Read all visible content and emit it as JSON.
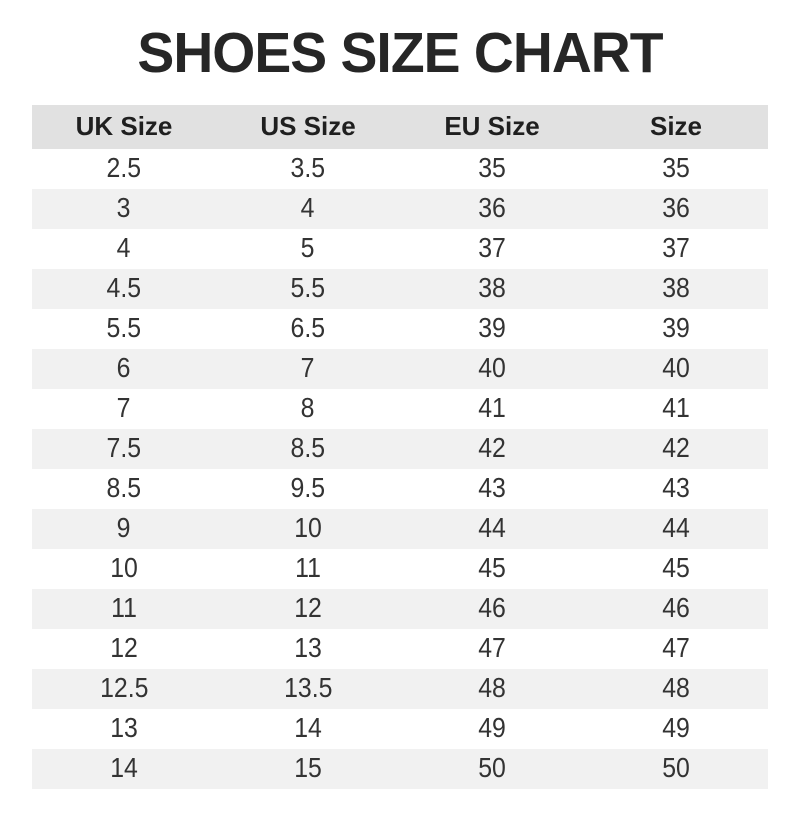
{
  "title": "SHOES SIZE CHART",
  "colors": {
    "background": "#ffffff",
    "header_bg": "#e1e1e1",
    "stripe_bg": "#f1f1f1",
    "title_text": "#262626",
    "header_text": "#1f1f1f",
    "cell_text": "#333333"
  },
  "table": {
    "columns": [
      "UK Size",
      "US Size",
      "EU Size",
      "Size"
    ],
    "rows": [
      [
        "2.5",
        "3.5",
        "35",
        "35"
      ],
      [
        "3",
        "4",
        "36",
        "36"
      ],
      [
        "4",
        "5",
        "37",
        "37"
      ],
      [
        "4.5",
        "5.5",
        "38",
        "38"
      ],
      [
        "5.5",
        "6.5",
        "39",
        "39"
      ],
      [
        "6",
        "7",
        "40",
        "40"
      ],
      [
        "7",
        "8",
        "41",
        "41"
      ],
      [
        "7.5",
        "8.5",
        "42",
        "42"
      ],
      [
        "8.5",
        "9.5",
        "43",
        "43"
      ],
      [
        "9",
        "10",
        "44",
        "44"
      ],
      [
        "10",
        "11",
        "45",
        "45"
      ],
      [
        "11",
        "12",
        "46",
        "46"
      ],
      [
        "12",
        "13",
        "47",
        "47"
      ],
      [
        "12.5",
        "13.5",
        "48",
        "48"
      ],
      [
        "13",
        "14",
        "49",
        "49"
      ],
      [
        "14",
        "15",
        "50",
        "50"
      ]
    ]
  },
  "chart_data": {
    "type": "table",
    "title": "SHOES SIZE CHART",
    "columns": [
      "UK Size",
      "US Size",
      "EU Size",
      "Size"
    ],
    "rows": [
      [
        "2.5",
        "3.5",
        "35",
        "35"
      ],
      [
        "3",
        "4",
        "36",
        "36"
      ],
      [
        "4",
        "5",
        "37",
        "37"
      ],
      [
        "4.5",
        "5.5",
        "38",
        "38"
      ],
      [
        "5.5",
        "6.5",
        "39",
        "39"
      ],
      [
        "6",
        "7",
        "40",
        "40"
      ],
      [
        "7",
        "8",
        "41",
        "41"
      ],
      [
        "7.5",
        "8.5",
        "42",
        "42"
      ],
      [
        "8.5",
        "9.5",
        "43",
        "43"
      ],
      [
        "9",
        "10",
        "44",
        "44"
      ],
      [
        "10",
        "11",
        "45",
        "45"
      ],
      [
        "11",
        "12",
        "46",
        "46"
      ],
      [
        "12",
        "13",
        "47",
        "47"
      ],
      [
        "12.5",
        "13.5",
        "48",
        "48"
      ],
      [
        "13",
        "14",
        "49",
        "49"
      ],
      [
        "14",
        "15",
        "50",
        "50"
      ]
    ],
    "layout": {
      "header_background": "#e1e1e1",
      "row_stripe_background": "#f1f1f1",
      "first_data_row_background": "#ffffff",
      "alignment": "center"
    }
  }
}
